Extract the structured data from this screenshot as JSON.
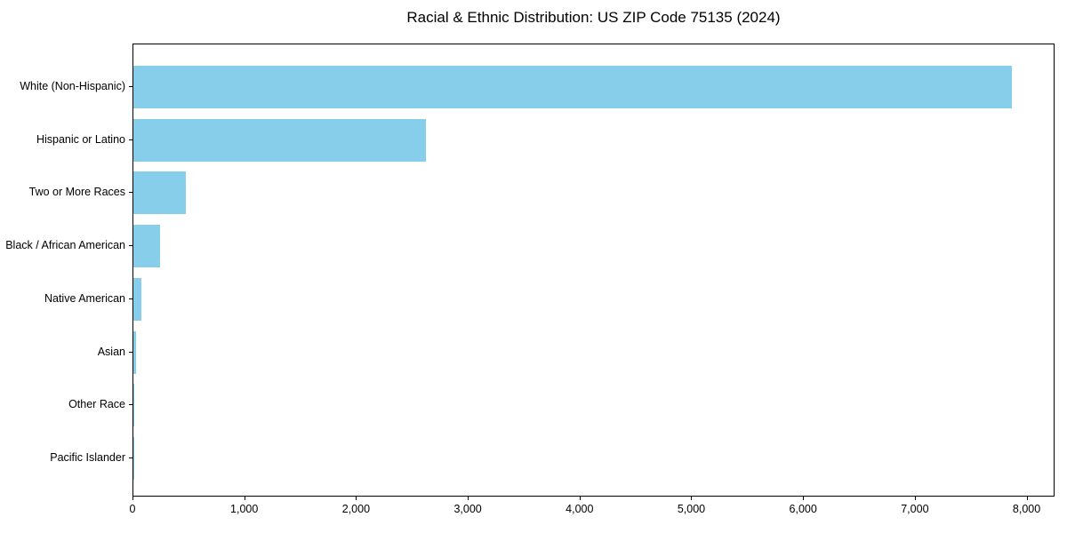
{
  "chart_data": {
    "type": "bar",
    "orientation": "horizontal",
    "title": "Racial & Ethnic Distribution: US ZIP Code 75135 (2024)",
    "categories": [
      "White (Non-Hispanic)",
      "Hispanic or Latino",
      "Two or More Races",
      "Black / African American",
      "Native American",
      "Asian",
      "Other Race",
      "Pacific Islander"
    ],
    "values": [
      7860,
      2615,
      470,
      240,
      70,
      25,
      6,
      1
    ],
    "xlabel": "",
    "ylabel": "",
    "xlim": [
      0,
      8250
    ],
    "xticks": [
      0,
      1000,
      2000,
      3000,
      4000,
      5000,
      6000,
      7000,
      8000
    ],
    "xtick_format": "thousands-comma",
    "grid": false,
    "legend": null,
    "colors": {
      "bar": "#87CEEB",
      "text": "#000000",
      "spine": "#000000",
      "background": "#ffffff"
    }
  }
}
